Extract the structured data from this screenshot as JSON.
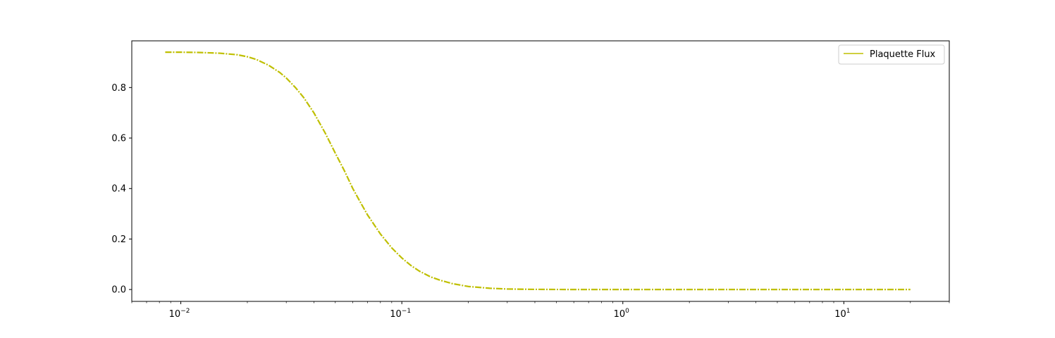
{
  "chart_data": {
    "type": "line",
    "xscale": "log",
    "xlim": [
      0.006,
      30
    ],
    "ylim": [
      -0.047,
      0.985
    ],
    "x_ticks_major": [
      0.01,
      0.1,
      1,
      10
    ],
    "x_tick_labels": [
      {
        "base": "10",
        "exp": "−2"
      },
      {
        "base": "10",
        "exp": "−1"
      },
      {
        "base": "10",
        "exp": "0"
      },
      {
        "base": "10",
        "exp": "1"
      }
    ],
    "y_ticks": [
      0.0,
      0.2,
      0.4,
      0.6,
      0.8
    ],
    "y_tick_labels": [
      "0.0",
      "0.2",
      "0.4",
      "0.6",
      "0.8"
    ],
    "grid": false,
    "legend": {
      "position": "top-right",
      "entries": [
        {
          "label": "Plaquette Flux",
          "color": "#bfbf00"
        }
      ]
    },
    "series": [
      {
        "name": "Plaquette Flux",
        "color": "#bfbf00",
        "style": "dash-dot",
        "x": [
          0.0085,
          0.01,
          0.012,
          0.015,
          0.018,
          0.02,
          0.022,
          0.025,
          0.028,
          0.03,
          0.033,
          0.036,
          0.04,
          0.045,
          0.05,
          0.055,
          0.06,
          0.065,
          0.07,
          0.08,
          0.09,
          0.1,
          0.11,
          0.12,
          0.135,
          0.15,
          0.17,
          0.2,
          0.25,
          0.3,
          0.4,
          0.5,
          0.7,
          1,
          2,
          5,
          10,
          20
        ],
        "y": [
          0.94,
          0.94,
          0.939,
          0.936,
          0.93,
          0.922,
          0.911,
          0.888,
          0.86,
          0.838,
          0.8,
          0.76,
          0.7,
          0.62,
          0.54,
          0.47,
          0.4,
          0.345,
          0.295,
          0.22,
          0.165,
          0.125,
          0.095,
          0.073,
          0.05,
          0.036,
          0.023,
          0.012,
          0.005,
          0.002,
          0.0006,
          0.0002,
          5e-05,
          1e-05,
          0.0,
          0.0,
          0.0,
          0.0
        ]
      }
    ]
  }
}
